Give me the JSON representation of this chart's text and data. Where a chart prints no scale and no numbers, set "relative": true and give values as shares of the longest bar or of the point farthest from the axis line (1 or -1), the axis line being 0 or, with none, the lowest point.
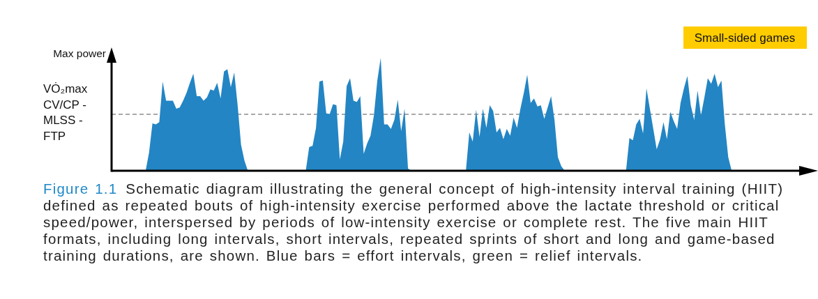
{
  "chart_data": {
    "type": "area",
    "relative": true,
    "color": "#2385c4",
    "ylabel": "Max power",
    "categories": [
      null,
      null,
      null,
      null,
      null,
      null,
      null,
      null,
      null,
      null,
      null,
      null,
      null,
      null,
      null,
      null,
      null,
      null,
      null,
      null,
      null,
      null,
      null,
      null,
      null,
      null,
      null,
      null,
      null,
      null,
      null,
      null,
      null,
      null,
      null,
      null,
      null,
      null,
      null,
      null,
      null,
      null,
      null,
      null,
      null,
      null,
      null,
      null,
      null,
      null,
      null,
      null,
      null,
      null,
      null,
      null,
      null,
      null,
      null,
      null,
      null,
      null,
      null,
      null,
      null,
      null,
      null,
      null,
      null,
      null,
      null,
      null,
      null,
      null,
      null,
      null,
      null,
      null,
      null,
      null,
      null,
      null,
      null,
      null,
      null,
      null,
      null,
      null,
      null,
      null,
      null,
      null,
      null,
      null,
      null,
      null,
      null,
      null,
      null,
      null,
      null,
      null,
      null,
      null,
      null,
      null,
      null,
      null,
      null,
      null,
      null,
      null,
      null,
      null,
      null,
      null,
      null,
      null,
      null,
      null,
      null,
      null,
      null,
      null,
      null,
      null,
      null,
      null,
      null,
      null,
      null,
      null,
      null,
      null,
      null,
      null,
      null,
      null,
      null,
      null,
      null,
      null,
      null,
      null,
      null,
      null,
      null,
      null,
      null,
      null,
      null,
      null,
      null,
      null,
      null,
      null,
      null,
      null,
      null,
      null,
      null,
      null,
      null,
      null,
      null,
      null,
      null,
      null,
      null,
      null,
      null,
      null,
      null,
      null,
      null,
      null,
      null,
      null,
      null,
      null,
      null,
      null,
      null,
      null,
      null,
      null,
      null,
      null,
      null,
      null,
      null,
      null,
      null,
      null,
      null,
      null,
      null,
      null,
      null,
      null,
      null,
      null
    ],
    "values": [
      0,
      0,
      0,
      0,
      0,
      0,
      0,
      0,
      0,
      0,
      0,
      0.16,
      0.42,
      0.41,
      0.43,
      0.79,
      0.62,
      0.62,
      0.62,
      0.55,
      0.56,
      0.62,
      0.69,
      0.78,
      0.86,
      0.66,
      0.66,
      0.62,
      0.65,
      0.72,
      0.71,
      0.78,
      0.64,
      0.88,
      0.9,
      0.74,
      0.87,
      0.58,
      0.23,
      0.09,
      0,
      0,
      0,
      0,
      0,
      0,
      0,
      0,
      0,
      0,
      0,
      0,
      0,
      0,
      0,
      0,
      0,
      0,
      0.21,
      0.22,
      0.38,
      0.79,
      0.8,
      0.51,
      0.5,
      0.59,
      0.58,
      0.1,
      0.26,
      0.75,
      0.82,
      0.62,
      0.61,
      0.66,
      0.15,
      0.24,
      0.31,
      0.49,
      0.8,
      1,
      0.41,
      0.41,
      0.37,
      0.45,
      0.63,
      0.35,
      0.55,
      0.02,
      0,
      0,
      0,
      0,
      0,
      0,
      0,
      0,
      0,
      0,
      0,
      0,
      0,
      0,
      0,
      0,
      0,
      0.34,
      0.26,
      0.54,
      0.3,
      0.55,
      0.38,
      0.58,
      0.53,
      0.34,
      0.38,
      0.28,
      0.37,
      0.31,
      0.47,
      0.38,
      0.55,
      0.69,
      0.85,
      0.6,
      0.64,
      0.57,
      0.58,
      0.46,
      0.56,
      0.66,
      0.45,
      0.12,
      0.04,
      0,
      0,
      0,
      0,
      0,
      0,
      0,
      0,
      0,
      0,
      0,
      0,
      0,
      0,
      0,
      0,
      0,
      0,
      0,
      0.29,
      0.27,
      0.41,
      0.46,
      0.33,
      0.73,
      0.55,
      0.37,
      0.19,
      0.28,
      0.43,
      0.28,
      0.52,
      0.44,
      0.37,
      0.6,
      0.73,
      0.84,
      0.58,
      0.45,
      0.71,
      0.49,
      0.65,
      0.82,
      0.77,
      0.86,
      0.74,
      0.8,
      0.41,
      0.12,
      0,
      0,
      0,
      0,
      0,
      0,
      0,
      0,
      0,
      0,
      0,
      0,
      0,
      0,
      0,
      0,
      0,
      0,
      0,
      0
    ],
    "ref_lines": [
      {
        "axis": "y",
        "value": 0.5,
        "label": "VȮ₂max\nCV/CP -\nMLSS -\nFTP",
        "color": "#555555",
        "line_style": "dashed"
      }
    ],
    "annotations": [
      "Small-sided games",
      "Figure 1.1",
      "Schematic diagram illustrating the general concept of high-intensity interval training (HIIT) defined as repeated bouts of high-intensity exercise performed above the lactate threshold or critical speed/power, interspersed by periods of low-intensity exercise or complete rest. The five main HIIT formats, including long intervals, short intervals, repeated sprints of short and long and game-based training durations, are shown. Blue bars = effort intervals, green = relief intervals."
    ]
  }
}
